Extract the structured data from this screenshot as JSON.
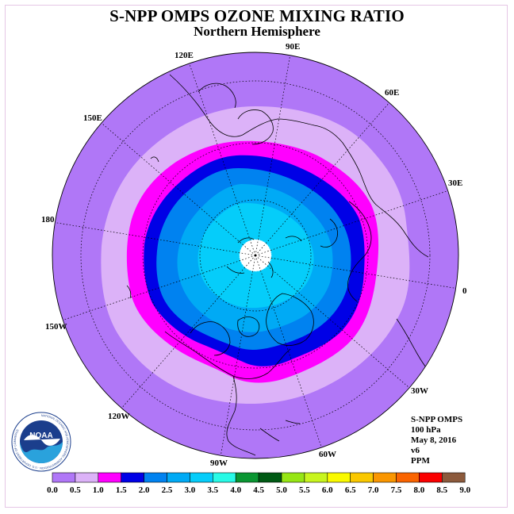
{
  "header": {
    "title": "S-NPP OMPS OZONE MIXING RATIO",
    "subtitle": "Northern Hemisphere"
  },
  "map": {
    "projection": "north-polar-stereographic",
    "center": "North Pole",
    "longitude_labels": [
      "90E",
      "60E",
      "30E",
      "0",
      "30W",
      "60W",
      "90W",
      "120W",
      "150W",
      "180",
      "150E",
      "120E"
    ],
    "no_data_region": "polar cap (white)",
    "field_bands_ppm": [
      {
        "level": "0.0-0.5",
        "region": "outer lower latitudes"
      },
      {
        "level": "0.5-1.0",
        "region": "subtropical ring"
      },
      {
        "level": "1.0-1.5",
        "region": "mid-latitude ring"
      },
      {
        "level": "1.5-2.0",
        "region": "high mid-latitudes"
      },
      {
        "level": "2.0-2.5",
        "region": "subpolar"
      },
      {
        "level": "2.5-3.0",
        "region": "polar"
      },
      {
        "level": "3.0-3.5",
        "region": "near pole"
      }
    ]
  },
  "info": {
    "instrument": "S-NPP OMPS",
    "level": "100 hPa",
    "date": "May 8, 2016",
    "version": "v6",
    "units": "PPM"
  },
  "colorbar": {
    "ticks": [
      "0.0",
      "0.5",
      "1.0",
      "1.5",
      "2.0",
      "2.5",
      "3.0",
      "3.5",
      "4.0",
      "4.5",
      "5.0",
      "5.5",
      "6.0",
      "6.5",
      "7.0",
      "7.5",
      "8.0",
      "8.5",
      "9.0"
    ],
    "colors": [
      "#b077f7",
      "#dcb2f8",
      "#ff00ff",
      "#0000e6",
      "#0082f0",
      "#00aaf5",
      "#05cdfa",
      "#28fae6",
      "#0a9632",
      "#005a14",
      "#96e614",
      "#c8f51e",
      "#fafa00",
      "#fac800",
      "#fa9600",
      "#fa6400",
      "#fa0000",
      "#8c5a3c"
    ]
  },
  "logo": {
    "name": "NOAA",
    "ring_text": "NATIONAL OCEANIC AND ATMOSPHERIC ADMINISTRATION · U.S. DEPARTMENT OF COMMERCE"
  }
}
